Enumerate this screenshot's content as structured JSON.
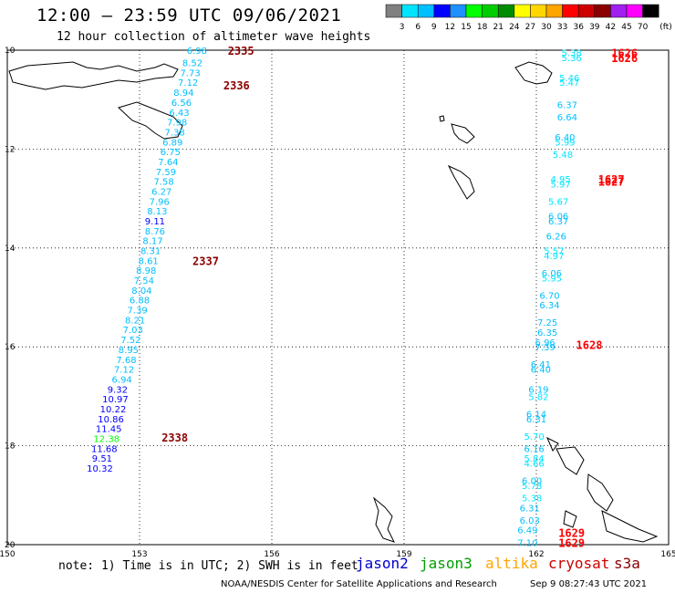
{
  "title": "12:00 — 23:59 UTC 09/06/2021",
  "subtitle": "12 hour collection of altimeter wave heights",
  "colorbar": {
    "unit": "(ft)",
    "labels": [
      "3",
      "6",
      "9",
      "12",
      "15",
      "18",
      "21",
      "24",
      "27",
      "30",
      "33",
      "36",
      "39",
      "42",
      "45",
      "70"
    ],
    "colors": [
      "#808080",
      "#00e5ff",
      "#00bfff",
      "#0000ff",
      "#1e90ff",
      "#00ff00",
      "#00cd00",
      "#008b00",
      "#ffff00",
      "#ffd700",
      "#ffa500",
      "#ff0000",
      "#cd0000",
      "#8b0000",
      "#a020f0",
      "#ff00ff",
      "#000000"
    ]
  },
  "map": {
    "lat_ticks": [
      "10",
      "12",
      "14",
      "16",
      "18",
      "20"
    ],
    "lon_ticks": [
      "150",
      "153",
      "156",
      "159",
      "162",
      "165"
    ]
  },
  "chart_data": {
    "type": "scatter",
    "title": "12:00 — 23:59 UTC 09/06/2021",
    "subtitle": "12 hour collection of altimeter wave heights",
    "x_ticks": [
      "150",
      "153",
      "156",
      "159",
      "162",
      "165"
    ],
    "y_ticks": [
      "10",
      "12",
      "14",
      "16",
      "18",
      "20"
    ],
    "xlim": [
      150,
      165
    ],
    "ylim": [
      10,
      20
    ],
    "units": "(ft)",
    "tracks": [
      {
        "satellite": "cryosat",
        "times": [
          {
            "label": "2335",
            "lat": 10.0,
            "lon": 155.3
          },
          {
            "label": "2336",
            "lat": 10.7,
            "lon": 155.2
          },
          {
            "label": "2337",
            "lat": 14.25,
            "lon": 154.5
          },
          {
            "label": "2338",
            "lat": 17.82,
            "lon": 153.8
          }
        ],
        "points": [
          {
            "lon": 154.3,
            "lat": 10.0,
            "swh": "6.98"
          },
          {
            "lon": 154.2,
            "lat": 10.25,
            "swh": "8.52"
          },
          {
            "lon": 154.15,
            "lat": 10.45,
            "swh": "7.73"
          },
          {
            "lon": 154.1,
            "lat": 10.65,
            "swh": "7.12"
          },
          {
            "lon": 154.0,
            "lat": 10.85,
            "swh": "8.94"
          },
          {
            "lon": 153.95,
            "lat": 11.05,
            "swh": "6.56"
          },
          {
            "lon": 153.9,
            "lat": 11.25,
            "swh": "6.43"
          },
          {
            "lon": 153.85,
            "lat": 11.45,
            "swh": "7.98"
          },
          {
            "lon": 153.8,
            "lat": 11.65,
            "swh": "7.38"
          },
          {
            "lon": 153.75,
            "lat": 11.85,
            "swh": "6.89"
          },
          {
            "lon": 153.7,
            "lat": 12.05,
            "swh": "6.75"
          },
          {
            "lon": 153.65,
            "lat": 12.25,
            "swh": "7.64"
          },
          {
            "lon": 153.6,
            "lat": 12.45,
            "swh": "7.59"
          },
          {
            "lon": 153.55,
            "lat": 12.65,
            "swh": "7.58"
          },
          {
            "lon": 153.5,
            "lat": 12.85,
            "swh": "6.27"
          },
          {
            "lon": 153.45,
            "lat": 13.05,
            "swh": "7.96"
          },
          {
            "lon": 153.4,
            "lat": 13.25,
            "swh": "8.13"
          },
          {
            "lon": 153.35,
            "lat": 13.45,
            "swh": "9.11"
          },
          {
            "lon": 153.35,
            "lat": 13.65,
            "swh": "8.76"
          },
          {
            "lon": 153.3,
            "lat": 13.85,
            "swh": "8.17"
          },
          {
            "lon": 153.25,
            "lat": 14.05,
            "swh": "8.31"
          },
          {
            "lon": 153.2,
            "lat": 14.25,
            "swh": "8.61"
          },
          {
            "lon": 153.15,
            "lat": 14.45,
            "swh": "8.98"
          },
          {
            "lon": 153.1,
            "lat": 14.65,
            "swh": "7.54"
          },
          {
            "lon": 153.05,
            "lat": 14.85,
            "swh": "8.04"
          },
          {
            "lon": 153.0,
            "lat": 15.05,
            "swh": "6.88"
          },
          {
            "lon": 152.95,
            "lat": 15.25,
            "swh": "7.39"
          },
          {
            "lon": 152.9,
            "lat": 15.45,
            "swh": "8.21"
          },
          {
            "lon": 152.85,
            "lat": 15.65,
            "swh": "7.03"
          },
          {
            "lon": 152.8,
            "lat": 15.85,
            "swh": "7.52"
          },
          {
            "lon": 152.75,
            "lat": 16.05,
            "swh": "8.95"
          },
          {
            "lon": 152.7,
            "lat": 16.25,
            "swh": "7.68"
          },
          {
            "lon": 152.65,
            "lat": 16.45,
            "swh": "7.12"
          },
          {
            "lon": 152.6,
            "lat": 16.65,
            "swh": "6.94"
          },
          {
            "lon": 152.5,
            "lat": 16.85,
            "swh": "9.32"
          },
          {
            "lon": 152.45,
            "lat": 17.05,
            "swh": "10.97"
          },
          {
            "lon": 152.4,
            "lat": 17.25,
            "swh": "10.22"
          },
          {
            "lon": 152.35,
            "lat": 17.45,
            "swh": "10.86"
          },
          {
            "lon": 152.3,
            "lat": 17.65,
            "swh": "11.45"
          },
          {
            "lon": 152.25,
            "lat": 17.85,
            "swh": "12.38"
          },
          {
            "lon": 152.2,
            "lat": 18.05,
            "swh": "11.68"
          },
          {
            "lon": 152.15,
            "lat": 18.25,
            "swh": "9.51"
          },
          {
            "lon": 152.1,
            "lat": 18.45,
            "swh": "10.32"
          }
        ]
      },
      {
        "satellite": "s3a",
        "times": [
          {
            "label": "1626",
            "lat": 10.05,
            "lon": 164.0
          },
          {
            "label": "1626",
            "lat": 10.15,
            "lon": 164.0
          },
          {
            "label": "1627",
            "lat": 12.6,
            "lon": 163.7
          },
          {
            "label": "1627",
            "lat": 12.65,
            "lon": 163.7
          },
          {
            "label": "1628",
            "lat": 15.95,
            "lon": 163.2
          },
          {
            "label": "1629",
            "lat": 19.75,
            "lon": 162.8
          },
          {
            "label": "1629",
            "lat": 19.95,
            "lon": 162.8
          }
        ],
        "points": [
          {
            "lon": 162.8,
            "lat": 10.05,
            "swh": "5.38"
          },
          {
            "lon": 162.8,
            "lat": 10.15,
            "swh": "5.36"
          },
          {
            "lon": 162.75,
            "lat": 10.55,
            "swh": "5.46"
          },
          {
            "lon": 162.75,
            "lat": 10.65,
            "swh": "5.47"
          },
          {
            "lon": 162.7,
            "lat": 11.1,
            "swh": "6.37"
          },
          {
            "lon": 162.7,
            "lat": 11.35,
            "swh": "6.64"
          },
          {
            "lon": 162.65,
            "lat": 11.75,
            "swh": "6.40"
          },
          {
            "lon": 162.65,
            "lat": 11.85,
            "swh": "5.99"
          },
          {
            "lon": 162.6,
            "lat": 12.1,
            "swh": "5.48"
          },
          {
            "lon": 162.55,
            "lat": 12.6,
            "swh": "4.95"
          },
          {
            "lon": 162.55,
            "lat": 12.7,
            "swh": "5.97"
          },
          {
            "lon": 162.5,
            "lat": 13.05,
            "swh": "5.67"
          },
          {
            "lon": 162.5,
            "lat": 13.35,
            "swh": "6.06"
          },
          {
            "lon": 162.5,
            "lat": 13.45,
            "swh": "6.37"
          },
          {
            "lon": 162.45,
            "lat": 13.75,
            "swh": "6.26"
          },
          {
            "lon": 162.4,
            "lat": 14.05,
            "swh": "5.57"
          },
          {
            "lon": 162.4,
            "lat": 14.15,
            "swh": "4.97"
          },
          {
            "lon": 162.35,
            "lat": 14.5,
            "swh": "6.06"
          },
          {
            "lon": 162.35,
            "lat": 14.6,
            "swh": "5.95"
          },
          {
            "lon": 162.3,
            "lat": 14.95,
            "swh": "6.70"
          },
          {
            "lon": 162.3,
            "lat": 15.15,
            "swh": "6.34"
          },
          {
            "lon": 162.25,
            "lat": 15.5,
            "swh": "7.25"
          },
          {
            "lon": 162.25,
            "lat": 15.7,
            "swh": "6.35"
          },
          {
            "lon": 162.2,
            "lat": 15.9,
            "swh": "6.96"
          },
          {
            "lon": 162.2,
            "lat": 16.0,
            "swh": "7.39"
          },
          {
            "lon": 162.1,
            "lat": 16.35,
            "swh": "6.41"
          },
          {
            "lon": 162.1,
            "lat": 16.45,
            "swh": "6.40"
          },
          {
            "lon": 162.05,
            "lat": 16.85,
            "swh": "6.19"
          },
          {
            "lon": 162.05,
            "lat": 17.0,
            "swh": "5.82"
          },
          {
            "lon": 162.0,
            "lat": 17.35,
            "swh": "6.14"
          },
          {
            "lon": 162.0,
            "lat": 17.45,
            "swh": "6.31"
          },
          {
            "lon": 161.95,
            "lat": 17.8,
            "swh": "5.70"
          },
          {
            "lon": 161.95,
            "lat": 18.05,
            "swh": "6.16"
          },
          {
            "lon": 161.95,
            "lat": 18.25,
            "swh": "5.84"
          },
          {
            "lon": 161.95,
            "lat": 18.35,
            "swh": "4.66"
          },
          {
            "lon": 161.9,
            "lat": 18.7,
            "swh": "6.00"
          },
          {
            "lon": 161.9,
            "lat": 18.8,
            "swh": "5.78"
          },
          {
            "lon": 161.9,
            "lat": 19.05,
            "swh": "5.38"
          },
          {
            "lon": 161.85,
            "lat": 19.25,
            "swh": "6.31"
          },
          {
            "lon": 161.85,
            "lat": 19.5,
            "swh": "6.03"
          },
          {
            "lon": 161.8,
            "lat": 19.7,
            "swh": "6.49"
          },
          {
            "lon": 161.8,
            "lat": 19.95,
            "swh": "7.10"
          }
        ]
      }
    ]
  },
  "note": "note: 1) Time is in UTC; 2) SWH is in feet",
  "legend": [
    {
      "name": "jason2",
      "color": "#0000cd"
    },
    {
      "name": "jason3",
      "color": "#00a000"
    },
    {
      "name": "altika",
      "color": "#ffa500"
    },
    {
      "name": "cryosat",
      "color": "#cd0000"
    },
    {
      "name": "s3a",
      "color": "#8b0000"
    }
  ],
  "credit": "NOAA/NESDIS Center for Satellite Applications and Research",
  "timestamp": "Sep  9 08:27:43 UTC 2021"
}
